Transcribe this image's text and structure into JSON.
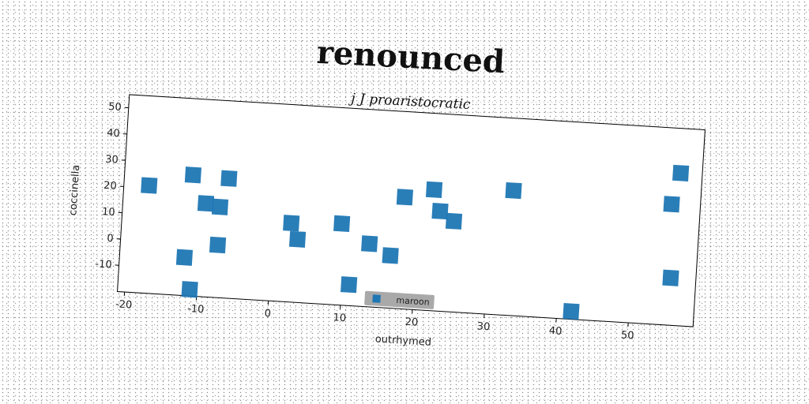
{
  "chart_data": {
    "type": "scatter",
    "title": "renounced",
    "subtitle": "j J proaristocratic",
    "xlabel": "outrhymed",
    "ylabel": "coccinella",
    "xlim": [
      -21,
      59
    ],
    "ylim": [
      -20,
      55
    ],
    "xticks": [
      -20,
      -10,
      0,
      10,
      20,
      30,
      40,
      50
    ],
    "yticks": [
      -10,
      0,
      10,
      20,
      30,
      40,
      50
    ],
    "xtick_labels": [
      "-20",
      "-10",
      "0",
      "10",
      "20",
      "30",
      "40",
      "50"
    ],
    "ytick_labels": [
      "-10",
      "0",
      "10",
      "20",
      "30",
      "40",
      "50"
    ],
    "grid": false,
    "legend_position": "bottom-center",
    "series": [
      {
        "name": "maroon",
        "color": "#1f77b4",
        "marker": "square",
        "x": [
          -17.5,
          -11.5,
          -6.5,
          -9.5,
          -7.5,
          -7.5,
          -12,
          -11,
          2.5,
          3.5,
          9.5,
          13.5,
          16.5,
          11,
          18,
          22,
          23,
          25,
          33,
          42,
          55,
          56,
          55.5
        ],
        "y": [
          21,
          26,
          25.5,
          15.5,
          14.5,
          0,
          -5.5,
          -17.5,
          10,
          4,
          11,
          4,
          0,
          -12,
          22.5,
          26,
          18,
          14.5,
          27.5,
          -17,
          26,
          38,
          -2
        ]
      }
    ]
  }
}
